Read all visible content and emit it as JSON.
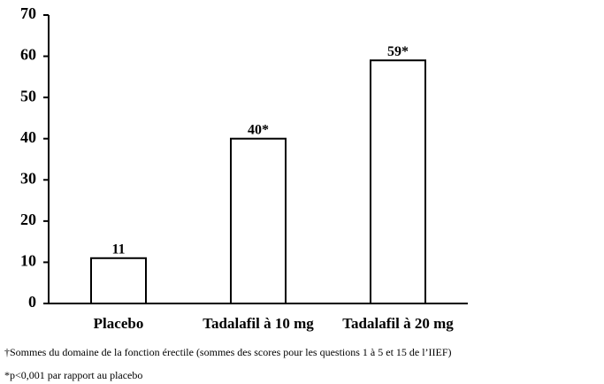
{
  "chart_data": {
    "type": "bar",
    "categories": [
      "Placebo",
      "Tadalafil à 10 mg",
      "Tadalafil à 20 mg"
    ],
    "values": [
      11,
      40,
      59
    ],
    "value_labels": [
      "11",
      "40*",
      "59*"
    ],
    "color": "#ffffff",
    "ylim": [
      0,
      70
    ],
    "yticks": [
      0,
      10,
      20,
      30,
      40,
      50,
      60,
      70
    ],
    "grid": false,
    "notes": [
      "†Sommes du domaine de la fonction érectile (sommes des scores pour les questions 1 à 5 et 15 de l’IIEF)",
      "*p<0,001 par rapport au placebo"
    ]
  }
}
